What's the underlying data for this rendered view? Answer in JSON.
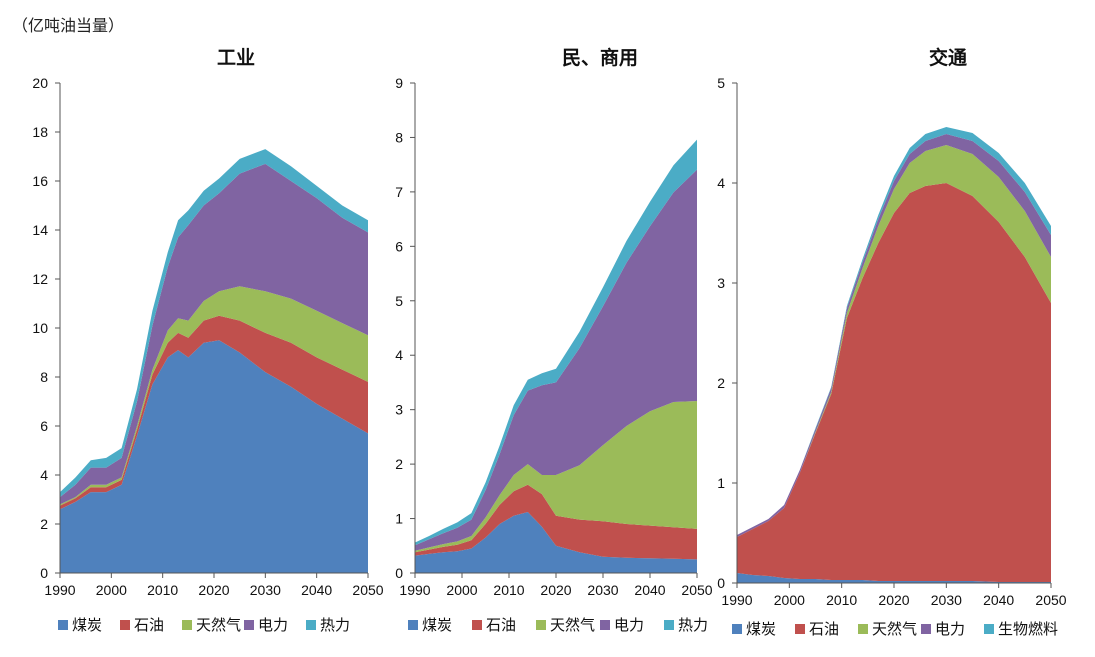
{
  "unit_label": "（亿吨油当量）",
  "colors": {
    "coal": "#4f81bd",
    "oil": "#c0504d",
    "gas": "#9bbb59",
    "power": "#8064a2",
    "heat": "#4bacc6",
    "bio": "#4bacc6"
  },
  "chart_data": [
    {
      "type": "area",
      "stacked": true,
      "title": "工业",
      "xlabel": "",
      "ylabel": "亿吨油当量",
      "xlim": [
        1990,
        2050
      ],
      "ylim": [
        0,
        20
      ],
      "xticks": [
        1990,
        2000,
        2010,
        2020,
        2030,
        2040,
        2050
      ],
      "yticks": [
        0,
        2,
        4,
        6,
        8,
        10,
        12,
        14,
        16,
        18,
        20
      ],
      "x": [
        1990,
        1993,
        1996,
        1999,
        2002,
        2005,
        2008,
        2011,
        2013,
        2015,
        2018,
        2021,
        2025,
        2030,
        2035,
        2040,
        2045,
        2050
      ],
      "series": [
        {
          "name": "煤炭",
          "key": "coal",
          "values": [
            2.6,
            2.9,
            3.3,
            3.3,
            3.6,
            5.6,
            7.7,
            8.8,
            9.1,
            8.8,
            9.4,
            9.5,
            9.0,
            8.2,
            7.6,
            6.9,
            6.3,
            5.7
          ]
        },
        {
          "name": "石油",
          "key": "oil",
          "values": [
            0.15,
            0.15,
            0.2,
            0.2,
            0.2,
            0.25,
            0.4,
            0.6,
            0.7,
            0.8,
            0.9,
            1.0,
            1.3,
            1.6,
            1.8,
            1.9,
            2.0,
            2.1
          ]
        },
        {
          "name": "天然气",
          "key": "gas",
          "values": [
            0.05,
            0.05,
            0.1,
            0.1,
            0.1,
            0.15,
            0.2,
            0.5,
            0.6,
            0.7,
            0.8,
            1.0,
            1.4,
            1.7,
            1.8,
            1.9,
            1.9,
            1.9
          ]
        },
        {
          "name": "电力",
          "key": "power",
          "values": [
            0.3,
            0.5,
            0.7,
            0.7,
            0.8,
            1.0,
            1.8,
            2.6,
            3.3,
            3.9,
            3.9,
            4.0,
            4.6,
            5.2,
            4.8,
            4.6,
            4.3,
            4.2
          ]
        },
        {
          "name": "热力",
          "key": "heat",
          "values": [
            0.2,
            0.3,
            0.3,
            0.4,
            0.4,
            0.5,
            0.6,
            0.6,
            0.7,
            0.6,
            0.6,
            0.6,
            0.6,
            0.6,
            0.6,
            0.5,
            0.5,
            0.5
          ]
        }
      ]
    },
    {
      "type": "area",
      "stacked": true,
      "title": "民、商用",
      "xlabel": "",
      "ylabel": "亿吨油当量",
      "xlim": [
        1990,
        2050
      ],
      "ylim": [
        0,
        9
      ],
      "xticks": [
        1990,
        2000,
        2010,
        2020,
        2030,
        2040,
        2050
      ],
      "yticks": [
        0,
        1,
        2,
        3,
        4,
        5,
        6,
        7,
        8,
        9
      ],
      "x": [
        1990,
        1993,
        1996,
        1999,
        2002,
        2005,
        2008,
        2011,
        2014,
        2017,
        2020,
        2025,
        2030,
        2035,
        2040,
        2045,
        2050
      ],
      "series": [
        {
          "name": "煤炭",
          "key": "coal",
          "values": [
            0.32,
            0.35,
            0.38,
            0.4,
            0.45,
            0.65,
            0.9,
            1.05,
            1.12,
            0.85,
            0.5,
            0.38,
            0.3,
            0.28,
            0.27,
            0.26,
            0.25
          ]
        },
        {
          "name": "石油",
          "key": "oil",
          "values": [
            0.06,
            0.08,
            0.1,
            0.12,
            0.15,
            0.25,
            0.35,
            0.45,
            0.5,
            0.6,
            0.55,
            0.6,
            0.65,
            0.62,
            0.6,
            0.58,
            0.56
          ]
        },
        {
          "name": "天然气",
          "key": "gas",
          "values": [
            0.03,
            0.04,
            0.05,
            0.06,
            0.08,
            0.12,
            0.18,
            0.3,
            0.38,
            0.35,
            0.75,
            1.0,
            1.4,
            1.8,
            2.1,
            2.3,
            2.35
          ]
        },
        {
          "name": "电力",
          "key": "power",
          "values": [
            0.1,
            0.15,
            0.2,
            0.25,
            0.3,
            0.5,
            0.75,
            1.1,
            1.35,
            1.65,
            1.7,
            2.15,
            2.55,
            3.0,
            3.4,
            3.85,
            4.25
          ]
        },
        {
          "name": "热力",
          "key": "heat",
          "values": [
            0.05,
            0.06,
            0.08,
            0.1,
            0.12,
            0.14,
            0.16,
            0.18,
            0.2,
            0.22,
            0.25,
            0.3,
            0.35,
            0.4,
            0.45,
            0.5,
            0.55
          ]
        }
      ]
    },
    {
      "type": "area",
      "stacked": true,
      "title": "交通",
      "xlabel": "",
      "ylabel": "亿吨油当量",
      "xlim": [
        1990,
        2050
      ],
      "ylim": [
        0,
        5
      ],
      "xticks": [
        1990,
        2000,
        2010,
        2020,
        2030,
        2040,
        2050
      ],
      "yticks": [
        0,
        1,
        2,
        3,
        4,
        5
      ],
      "x": [
        1990,
        1993,
        1996,
        1999,
        2002,
        2005,
        2008,
        2011,
        2014,
        2017,
        2020,
        2023,
        2026,
        2030,
        2035,
        2040,
        2045,
        2050
      ],
      "series": [
        {
          "name": "煤炭",
          "key": "coal",
          "values": [
            0.1,
            0.08,
            0.07,
            0.05,
            0.04,
            0.04,
            0.03,
            0.03,
            0.03,
            0.02,
            0.02,
            0.02,
            0.02,
            0.02,
            0.02,
            0.01,
            0.01,
            0.01
          ]
        },
        {
          "name": "石油",
          "key": "oil",
          "values": [
            0.36,
            0.46,
            0.55,
            0.7,
            1.06,
            1.46,
            1.86,
            2.62,
            3.02,
            3.38,
            3.68,
            3.88,
            3.95,
            3.98,
            3.85,
            3.6,
            3.25,
            2.79
          ]
        },
        {
          "name": "天然气",
          "key": "gas",
          "values": [
            0.0,
            0.0,
            0.0,
            0.0,
            0.0,
            0.01,
            0.02,
            0.05,
            0.1,
            0.17,
            0.24,
            0.3,
            0.35,
            0.38,
            0.42,
            0.45,
            0.46,
            0.46
          ]
        },
        {
          "name": "电力",
          "key": "power",
          "values": [
            0.02,
            0.02,
            0.02,
            0.03,
            0.03,
            0.03,
            0.04,
            0.05,
            0.06,
            0.07,
            0.08,
            0.09,
            0.1,
            0.11,
            0.13,
            0.16,
            0.19,
            0.22
          ]
        },
        {
          "name": "生物燃料",
          "key": "bio",
          "values": [
            0.0,
            0.0,
            0.0,
            0.0,
            0.0,
            0.01,
            0.01,
            0.02,
            0.03,
            0.04,
            0.05,
            0.06,
            0.07,
            0.07,
            0.08,
            0.08,
            0.09,
            0.09
          ]
        }
      ]
    }
  ]
}
